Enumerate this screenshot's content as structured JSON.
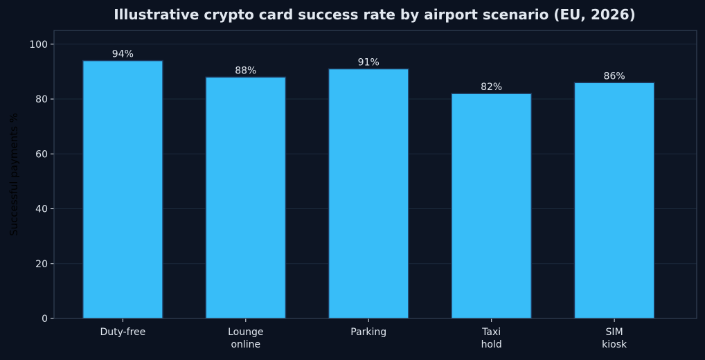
{
  "chart_data": {
    "type": "bar",
    "title": "Illustrative crypto card success rate by airport scenario (EU, 2026)",
    "xlabel": "",
    "ylabel": "Successful payments %",
    "ylim": [
      0,
      105
    ],
    "yticks": [
      0,
      20,
      40,
      60,
      80,
      100
    ],
    "grid": "horizontal",
    "categories": [
      [
        "Duty-free"
      ],
      [
        "Lounge",
        "online"
      ],
      [
        "Parking"
      ],
      [
        "Taxi",
        "hold"
      ],
      [
        "SIM",
        "kiosk"
      ]
    ],
    "values": [
      94,
      88,
      91,
      82,
      86
    ],
    "value_labels": [
      "94%",
      "88%",
      "91%",
      "82%",
      "86%"
    ],
    "colors": {
      "background": "#0b1220",
      "bar_fill": "#38bdf8",
      "bar_stroke": "#1e3a5f",
      "grid": "#1c2a3c",
      "axes": "#334155",
      "text": "#e2e8f0",
      "ylabel": "#000000"
    }
  }
}
